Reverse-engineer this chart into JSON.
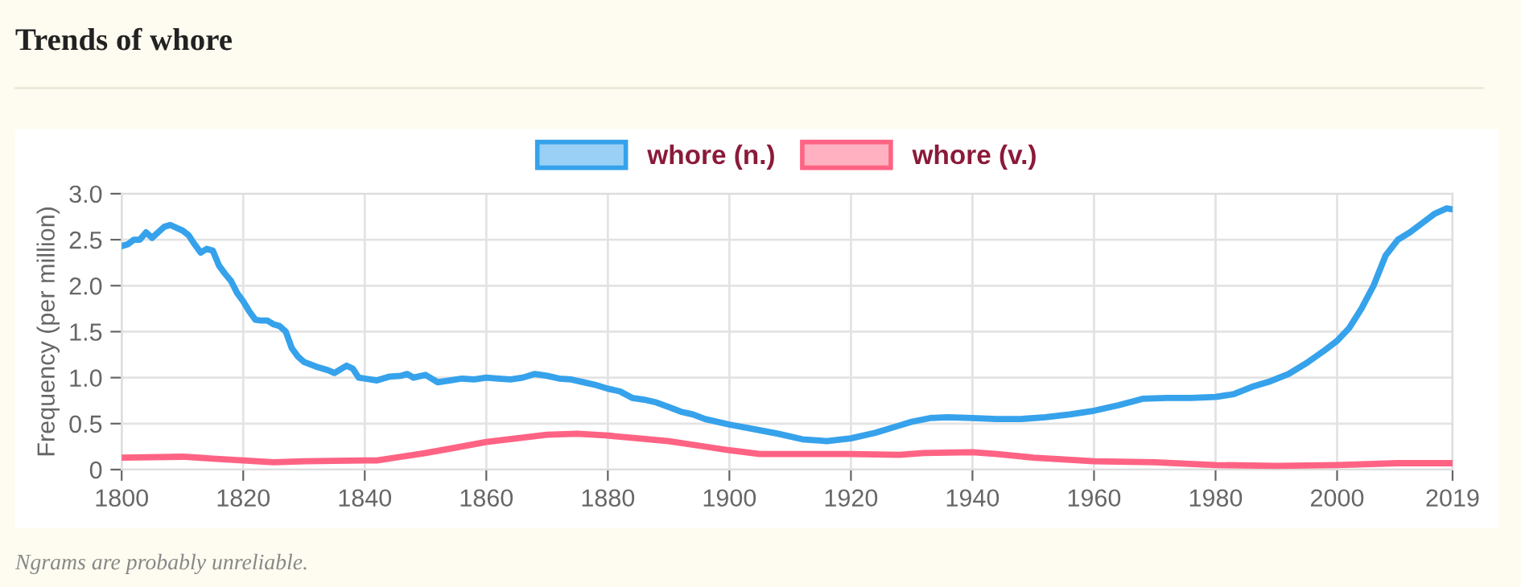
{
  "chart_data": {
    "type": "line",
    "title": "Trends of whore",
    "ylabel": "Frequency (per million)",
    "annotations": [
      "Ngrams are probably unreliable."
    ],
    "series": [
      {
        "name": "whore (n.)",
        "color": "#36a2eb",
        "x": [
          1800,
          1801,
          1802,
          1803,
          1804,
          1805,
          1806,
          1807,
          1808,
          1809,
          1810,
          1811,
          1812,
          1813,
          1814,
          1815,
          1816,
          1817,
          1818,
          1819,
          1820,
          1821,
          1822,
          1823,
          1824,
          1825,
          1826,
          1827,
          1828,
          1829,
          1830,
          1832,
          1834,
          1835,
          1837,
          1838,
          1839,
          1840,
          1842,
          1844,
          1846,
          1847,
          1848,
          1850,
          1852,
          1854,
          1856,
          1858,
          1860,
          1862,
          1864,
          1866,
          1868,
          1870,
          1872,
          1874,
          1876,
          1878,
          1880,
          1882,
          1884,
          1886,
          1888,
          1890,
          1892,
          1894,
          1896,
          1900,
          1904,
          1908,
          1912,
          1916,
          1920,
          1924,
          1928,
          1930,
          1933,
          1936,
          1940,
          1944,
          1948,
          1952,
          1956,
          1960,
          1964,
          1968,
          1972,
          1976,
          1980,
          1983,
          1986,
          1989,
          1992,
          1995,
          1998,
          2000,
          2002,
          2004,
          2006,
          2008,
          2010,
          2012,
          2014,
          2016,
          2018,
          2019
        ],
        "values": [
          2.43,
          2.45,
          2.5,
          2.5,
          2.58,
          2.52,
          2.58,
          2.64,
          2.66,
          2.63,
          2.6,
          2.55,
          2.45,
          2.36,
          2.4,
          2.38,
          2.22,
          2.13,
          2.05,
          1.92,
          1.83,
          1.72,
          1.63,
          1.62,
          1.62,
          1.58,
          1.56,
          1.5,
          1.32,
          1.23,
          1.17,
          1.12,
          1.08,
          1.05,
          1.13,
          1.1,
          1.0,
          0.99,
          0.97,
          1.01,
          1.02,
          1.04,
          1.0,
          1.03,
          0.95,
          0.97,
          0.99,
          0.98,
          1.0,
          0.99,
          0.98,
          1.0,
          1.04,
          1.02,
          0.99,
          0.98,
          0.95,
          0.92,
          0.88,
          0.85,
          0.78,
          0.76,
          0.73,
          0.68,
          0.63,
          0.6,
          0.55,
          0.49,
          0.44,
          0.39,
          0.33,
          0.31,
          0.34,
          0.4,
          0.48,
          0.52,
          0.56,
          0.57,
          0.56,
          0.55,
          0.55,
          0.57,
          0.6,
          0.64,
          0.7,
          0.77,
          0.78,
          0.78,
          0.79,
          0.82,
          0.9,
          0.96,
          1.04,
          1.16,
          1.3,
          1.4,
          1.54,
          1.75,
          2.0,
          2.33,
          2.5,
          2.58,
          2.68,
          2.78,
          2.84,
          2.83
        ]
      },
      {
        "name": "whore (v.)",
        "color": "#ff6384",
        "x": [
          1800,
          1810,
          1815,
          1820,
          1825,
          1830,
          1840,
          1842,
          1846,
          1850,
          1855,
          1860,
          1865,
          1870,
          1875,
          1880,
          1885,
          1890,
          1895,
          1900,
          1905,
          1910,
          1920,
          1928,
          1932,
          1940,
          1944,
          1950,
          1955,
          1960,
          1970,
          1980,
          1990,
          2000,
          2010,
          2019
        ],
        "values": [
          0.13,
          0.14,
          0.12,
          0.1,
          0.08,
          0.09,
          0.1,
          0.1,
          0.14,
          0.18,
          0.24,
          0.3,
          0.34,
          0.38,
          0.39,
          0.37,
          0.34,
          0.31,
          0.26,
          0.21,
          0.17,
          0.17,
          0.17,
          0.16,
          0.18,
          0.19,
          0.17,
          0.13,
          0.11,
          0.09,
          0.08,
          0.05,
          0.04,
          0.05,
          0.07,
          0.07
        ]
      }
    ],
    "xlim": [
      1800,
      2019
    ],
    "xticks": [
      1800,
      1820,
      1840,
      1860,
      1880,
      1900,
      1920,
      1940,
      1960,
      1980,
      2000,
      2019
    ],
    "ylim": [
      0,
      3
    ],
    "yticks": [
      {
        "value": 0,
        "label": "0"
      },
      0.5,
      {
        "value": 1,
        "label": "1.0"
      },
      1.5,
      {
        "value": 2,
        "label": "2.0"
      },
      2.5,
      {
        "value": 3,
        "label": "3.0"
      }
    ],
    "grid": true,
    "legend": "top",
    "marker": "none",
    "line_style": "solid"
  }
}
